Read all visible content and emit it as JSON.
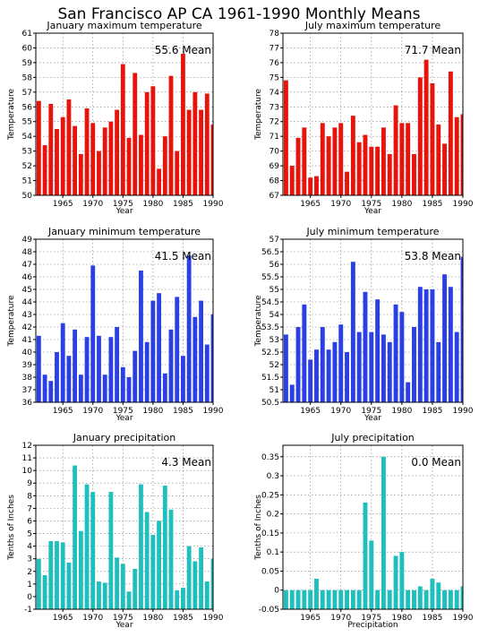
{
  "page_title": "San Francisco AP CA  1961-1990 Monthly Means",
  "colors": {
    "red": "#e8140c",
    "blue": "#2a3fe6",
    "teal": "#1fbfbd"
  },
  "chart_data": [
    {
      "type": "bar",
      "title": "January maximum temperature",
      "ylabel": "Temperature",
      "xlabel": "Year",
      "mean_label": "55.6 Mean",
      "color": "red",
      "x": [
        1961,
        1962,
        1963,
        1964,
        1965,
        1966,
        1967,
        1968,
        1969,
        1970,
        1971,
        1972,
        1973,
        1974,
        1975,
        1976,
        1977,
        1978,
        1979,
        1980,
        1981,
        1982,
        1983,
        1984,
        1985,
        1986,
        1987,
        1988,
        1989,
        1990
      ],
      "values": [
        56.4,
        53.4,
        56.2,
        54.5,
        55.3,
        56.5,
        54.7,
        52.8,
        55.9,
        54.9,
        53.0,
        54.6,
        55.0,
        55.8,
        58.9,
        53.9,
        58.3,
        54.1,
        57.0,
        57.4,
        51.8,
        54.0,
        58.1,
        53.0,
        59.6,
        55.8,
        57.0,
        55.8,
        56.9,
        54.8
      ],
      "ylim": [
        50,
        61
      ],
      "yticks": [
        50,
        51,
        52,
        53,
        54,
        55,
        56,
        57,
        58,
        59,
        60,
        61
      ],
      "xticks": [
        1965,
        1970,
        1975,
        1980,
        1985,
        1990
      ],
      "xlim": [
        1960.5,
        1990
      ]
    },
    {
      "type": "bar",
      "title": "July maximum temperature",
      "ylabel": "Temperature",
      "xlabel": "Year",
      "mean_label": "71.7 Mean",
      "color": "red",
      "x": [
        1961,
        1962,
        1963,
        1964,
        1965,
        1966,
        1967,
        1968,
        1969,
        1970,
        1971,
        1972,
        1973,
        1974,
        1975,
        1976,
        1977,
        1978,
        1979,
        1980,
        1981,
        1982,
        1983,
        1984,
        1985,
        1986,
        1987,
        1988,
        1989,
        1990
      ],
      "values": [
        74.8,
        69.0,
        70.9,
        71.6,
        68.2,
        68.3,
        71.9,
        71.0,
        71.6,
        71.9,
        68.6,
        72.4,
        70.6,
        71.1,
        70.3,
        70.3,
        71.6,
        69.8,
        73.1,
        71.9,
        71.9,
        69.8,
        75.0,
        76.2,
        74.6,
        71.8,
        70.5,
        75.4,
        72.3,
        72.5
      ],
      "ylim": [
        67,
        78
      ],
      "yticks": [
        67,
        68,
        69,
        70,
        71,
        72,
        73,
        74,
        75,
        76,
        77,
        78
      ],
      "xticks": [
        1965,
        1970,
        1975,
        1980,
        1985,
        1990
      ],
      "xlim": [
        1960.5,
        1990
      ]
    },
    {
      "type": "bar",
      "title": "January minimum temperature",
      "ylabel": "Temperature",
      "xlabel": "Year",
      "mean_label": "41.5 Mean",
      "color": "blue",
      "x": [
        1961,
        1962,
        1963,
        1964,
        1965,
        1966,
        1967,
        1968,
        1969,
        1970,
        1971,
        1972,
        1973,
        1974,
        1975,
        1976,
        1977,
        1978,
        1979,
        1980,
        1981,
        1982,
        1983,
        1984,
        1985,
        1986,
        1987,
        1988,
        1989,
        1990
      ],
      "values": [
        41.3,
        38.2,
        37.7,
        40.0,
        42.3,
        39.7,
        41.8,
        38.2,
        41.2,
        46.9,
        41.3,
        38.2,
        41.2,
        42.0,
        38.8,
        38.0,
        40.1,
        46.5,
        40.8,
        44.1,
        44.7,
        38.3,
        41.8,
        44.4,
        39.7,
        47.7,
        42.8,
        44.1,
        40.6,
        43.0
      ],
      "ylim": [
        36,
        49
      ],
      "yticks": [
        36,
        37,
        38,
        39,
        40,
        41,
        42,
        43,
        44,
        45,
        46,
        47,
        48,
        49
      ],
      "xticks": [
        1965,
        1970,
        1975,
        1980,
        1985,
        1990
      ],
      "xlim": [
        1960.5,
        1990
      ]
    },
    {
      "type": "bar",
      "title": "July minimum temperature",
      "ylabel": "Temperature",
      "xlabel": "Year",
      "mean_label": "53.8 Mean",
      "color": "blue",
      "x": [
        1961,
        1962,
        1963,
        1964,
        1965,
        1966,
        1967,
        1968,
        1969,
        1970,
        1971,
        1972,
        1973,
        1974,
        1975,
        1976,
        1977,
        1978,
        1979,
        1980,
        1981,
        1982,
        1983,
        1984,
        1985,
        1986,
        1987,
        1988,
        1989,
        1990
      ],
      "values": [
        53.2,
        51.2,
        53.5,
        54.4,
        52.2,
        52.6,
        53.5,
        52.6,
        52.9,
        53.6,
        52.5,
        56.1,
        53.3,
        54.9,
        53.3,
        54.6,
        53.2,
        52.9,
        54.4,
        54.1,
        51.3,
        53.5,
        55.1,
        55.0,
        55.0,
        52.9,
        55.6,
        55.1,
        53.3,
        56.3
      ],
      "ylim": [
        50.5,
        57
      ],
      "yticks": [
        50.5,
        51,
        51.5,
        52,
        52.5,
        53,
        53.5,
        54,
        54.5,
        55,
        55.5,
        56,
        56.5,
        57
      ],
      "xticks": [
        1965,
        1970,
        1975,
        1980,
        1985,
        1990
      ],
      "xlim": [
        1960.5,
        1990
      ]
    },
    {
      "type": "bar",
      "title": "January precipitation",
      "ylabel": "Tenths of Inches",
      "xlabel": "Year",
      "mean_label": "4.3 Mean",
      "color": "teal",
      "x": [
        1961,
        1962,
        1963,
        1964,
        1965,
        1966,
        1967,
        1968,
        1969,
        1970,
        1971,
        1972,
        1973,
        1974,
        1975,
        1976,
        1977,
        1978,
        1979,
        1980,
        1981,
        1982,
        1983,
        1984,
        1985,
        1986,
        1987,
        1988,
        1989,
        1990
      ],
      "values": [
        3.0,
        1.7,
        4.4,
        4.4,
        4.3,
        2.7,
        10.4,
        5.2,
        8.9,
        8.3,
        1.2,
        1.1,
        8.3,
        3.1,
        2.6,
        0.4,
        2.2,
        8.9,
        6.7,
        4.9,
        6.0,
        8.8,
        6.9,
        0.5,
        0.7,
        4.0,
        2.8,
        3.9,
        1.2,
        3.0
      ],
      "ylim": [
        -1,
        12
      ],
      "yticks": [
        -1,
        0,
        1,
        2,
        3,
        4,
        5,
        6,
        7,
        8,
        9,
        10,
        11,
        12
      ],
      "xticks": [
        1965,
        1970,
        1975,
        1980,
        1985,
        1990
      ],
      "xlim": [
        1960.5,
        1990
      ]
    },
    {
      "type": "bar",
      "title": "July precipitation",
      "ylabel": "Tenths of Inches",
      "xlabel": "Precipitation",
      "mean_label": "0.0 Mean",
      "color": "teal",
      "x": [
        1961,
        1962,
        1963,
        1964,
        1965,
        1966,
        1967,
        1968,
        1969,
        1970,
        1971,
        1972,
        1973,
        1974,
        1975,
        1976,
        1977,
        1978,
        1979,
        1980,
        1981,
        1982,
        1983,
        1984,
        1985,
        1986,
        1987,
        1988,
        1989,
        1990
      ],
      "values": [
        0.0,
        0.0,
        0.0,
        0.0,
        0.0,
        0.03,
        0.0,
        0.0,
        0.0,
        0.0,
        0.0,
        0.0,
        0.0,
        0.23,
        0.13,
        0.0,
        0.35,
        0.0,
        0.09,
        0.1,
        0.0,
        0.0,
        0.01,
        0.0,
        0.03,
        0.02,
        0.0,
        0.0,
        0.0,
        0.01
      ],
      "ylim": [
        -0.05,
        0.38
      ],
      "yticks": [
        -0.05,
        0,
        0.05,
        0.1,
        0.15,
        0.2,
        0.25,
        0.3,
        0.35
      ],
      "xticks": [
        1965,
        1970,
        1975,
        1980,
        1985,
        1990
      ],
      "xlim": [
        1960.5,
        1990
      ]
    }
  ]
}
